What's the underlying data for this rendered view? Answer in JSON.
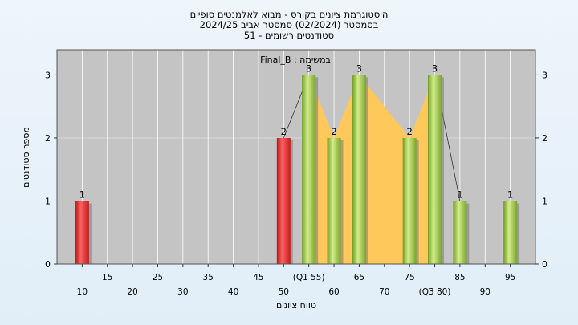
{
  "title_lines": [
    "היסטוגרמת ציונים בקורס - מבוא לאלמנטים סופיים",
    "בסמסטר  (02/2024)  סמסטר אביב 2024/25",
    "סטודנטים רשומים - 51"
  ],
  "colors": {
    "plot_bg": "#c4c4c4",
    "failing": "#e02828",
    "passing": "#94c23c",
    "iqr_band": "#ffc85a",
    "gridline": "#ffffff"
  },
  "chart_data": {
    "type": "bar",
    "title": "היסטוגרמת ציונים בקורס - מבוא לאלמנטים סופיים",
    "xlabel": "טווח ציונים",
    "ylabel": "מספר סטודנטים",
    "ylim": [
      0,
      3.4
    ],
    "yticks": [
      0,
      1,
      2,
      3
    ],
    "xlim": [
      5,
      100
    ],
    "x_tick_labels": [
      {
        "x": 10,
        "label": "10"
      },
      {
        "x": 15,
        "label": "15"
      },
      {
        "x": 20,
        "label": "20"
      },
      {
        "x": 25,
        "label": "25"
      },
      {
        "x": 30,
        "label": "30"
      },
      {
        "x": 35,
        "label": "35"
      },
      {
        "x": 40,
        "label": "40"
      },
      {
        "x": 45,
        "label": "45"
      },
      {
        "x": 50,
        "label": "50"
      },
      {
        "x": 55,
        "label": "(Q1 55)"
      },
      {
        "x": 60,
        "label": "60"
      },
      {
        "x": 65,
        "label": "65"
      },
      {
        "x": 70,
        "label": "70"
      },
      {
        "x": 75,
        "label": "75"
      },
      {
        "x": 80,
        "label": "(Q3 80)"
      },
      {
        "x": 85,
        "label": "85"
      },
      {
        "x": 90,
        "label": "90"
      },
      {
        "x": 95,
        "label": "95"
      }
    ],
    "bars": [
      {
        "x": 10,
        "value": 1,
        "label": "1",
        "status": "fail"
      },
      {
        "x": 50,
        "value": 2,
        "label": "2",
        "status": "fail"
      },
      {
        "x": 55,
        "value": 3,
        "label": "3",
        "status": "pass"
      },
      {
        "x": 60,
        "value": 2,
        "label": "2",
        "status": "pass"
      },
      {
        "x": 65,
        "value": 3,
        "label": "3",
        "status": "pass"
      },
      {
        "x": 75,
        "value": 2,
        "label": "2",
        "status": "pass"
      },
      {
        "x": 80,
        "value": 3,
        "label": "3",
        "status": "pass"
      },
      {
        "x": 85,
        "value": 1,
        "label": "1",
        "status": "pass"
      },
      {
        "x": 95,
        "value": 1,
        "label": "1",
        "status": "pass"
      }
    ],
    "iqr": {
      "q1": 55,
      "q3": 80
    },
    "legend": {
      "text": "במשימה : Final_B",
      "position": "top-center"
    }
  }
}
